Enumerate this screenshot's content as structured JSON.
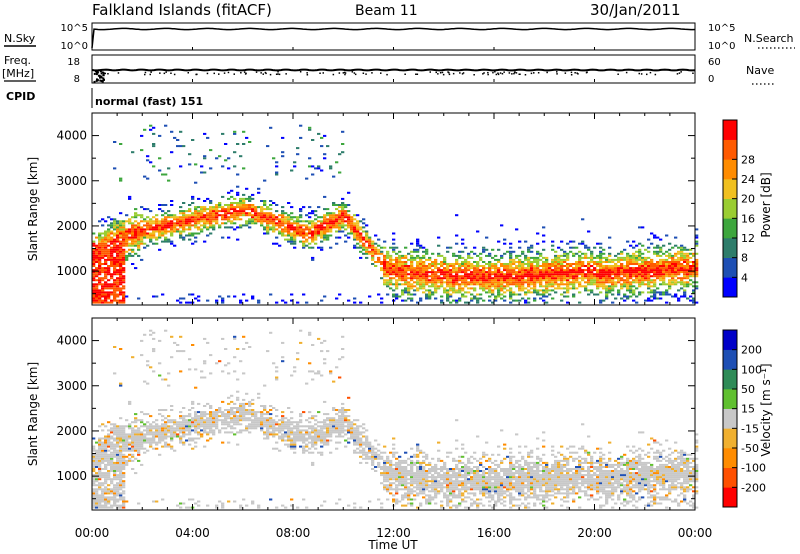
{
  "header": {
    "station": "Falkland Islands (fitACF)",
    "beam": "Beam 11",
    "date": "30/Jan/2011"
  },
  "side_labels": {
    "nsky": "N.Sky",
    "nsearch": "N.Search",
    "freq_top": "Freq.",
    "freq_unit": "[MHz]",
    "nave": "Nave",
    "cpid": "CPID",
    "cpid_value": "normal (fast) 151"
  },
  "colors": {
    "power_scale": [
      "#0000ff",
      "#1e4fb4",
      "#2e7d6b",
      "#3da63d",
      "#9acd32",
      "#f0c020",
      "#ff8c00",
      "#ff5a00",
      "#ff0000"
    ],
    "velocity_scale": [
      "#ff0000",
      "#ff5000",
      "#ff8c00",
      "#f0b030",
      "#c8c8c8",
      "#60c030",
      "#2e8b57",
      "#1e4fb4",
      "#0000c8"
    ]
  },
  "chart_data": [
    {
      "type": "line",
      "name": "N.Sky / N.Search",
      "y_left_ticks": [
        "10^5",
        "10^0"
      ],
      "y_right_ticks": [
        "10^5",
        "10^0"
      ]
    },
    {
      "type": "scatter",
      "name": "Freq / Nave",
      "y_left_ticks": [
        "18",
        "8"
      ],
      "y_right_ticks": [
        "60",
        "0"
      ]
    },
    {
      "type": "heatmap",
      "ylabel": "Slant Range [km]",
      "yticks": [
        1000,
        2000,
        3000,
        4000
      ],
      "ylim": [
        250,
        4500
      ],
      "colorbar_label": "Power [dB]",
      "colorbar_ticks": [
        4,
        8,
        12,
        16,
        20,
        24,
        28
      ]
    },
    {
      "type": "heatmap",
      "ylabel": "Slant Range [km]",
      "yticks": [
        1000,
        2000,
        3000,
        4000
      ],
      "ylim": [
        250,
        4500
      ],
      "colorbar_label": "Velocity [m s⁻¹]",
      "colorbar_ticks": [
        200,
        100,
        50,
        15,
        -15,
        -50,
        -100,
        -200
      ]
    }
  ],
  "x_axis": {
    "label": "Time UT",
    "ticks": [
      "00:00",
      "04:00",
      "08:00",
      "12:00",
      "16:00",
      "20:00",
      "00:00"
    ],
    "range_hours": [
      0,
      24
    ]
  }
}
